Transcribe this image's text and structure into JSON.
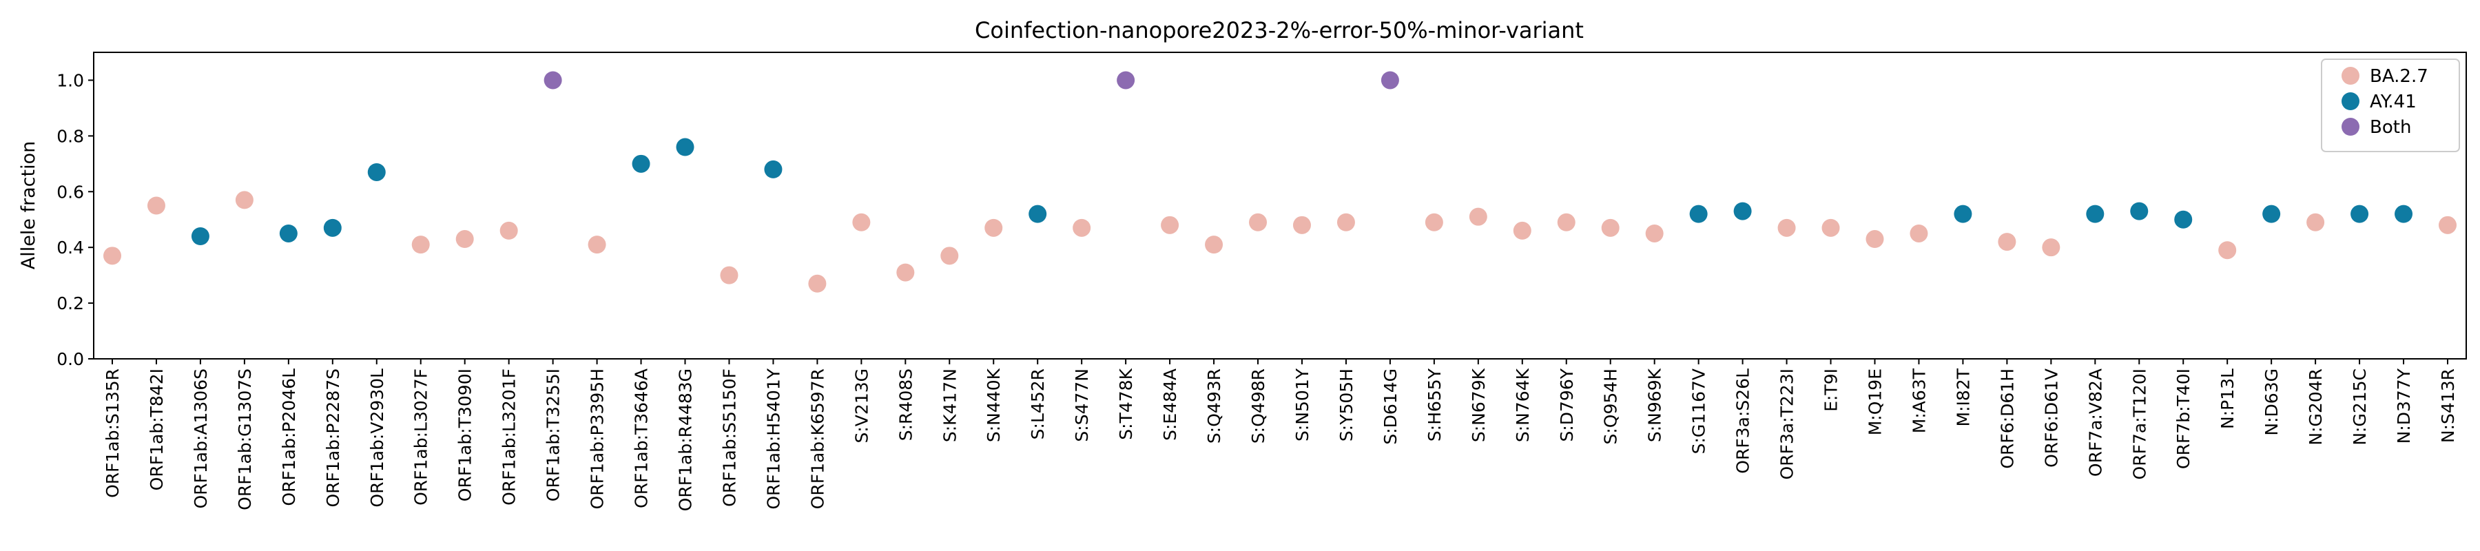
{
  "chart_data": {
    "type": "scatter",
    "title": "Coinfection-nanopore2023-2%-error-50%-minor-variant",
    "ylabel": "Allele fraction",
    "xlabel": "",
    "ylim": [
      0,
      1.1
    ],
    "yticks": [
      "0.0",
      "0.2",
      "0.4",
      "0.6",
      "0.8",
      "1.0"
    ],
    "grid": false,
    "legend_position": "top-right",
    "colors": {
      "BA.2.7": "#ecb5ac",
      "AY.41": "#0f7ba2",
      "Both": "#8c6bb1"
    },
    "series": [
      {
        "name": "BA.2.7"
      },
      {
        "name": "AY.41"
      },
      {
        "name": "Both"
      }
    ],
    "categories": [
      "ORF1ab:S135R",
      "ORF1ab:T842I",
      "ORF1ab:A1306S",
      "ORF1ab:G1307S",
      "ORF1ab:P2046L",
      "ORF1ab:P2287S",
      "ORF1ab:V2930L",
      "ORF1ab:L3027F",
      "ORF1ab:T3090I",
      "ORF1ab:L3201F",
      "ORF1ab:T3255I",
      "ORF1ab:P3395H",
      "ORF1ab:T3646A",
      "ORF1ab:R4483G",
      "ORF1ab:S5150F",
      "ORF1ab:H5401Y",
      "ORF1ab:K6597R",
      "S:V213G",
      "S:R408S",
      "S:K417N",
      "S:N440K",
      "S:L452R",
      "S:S477N",
      "S:T478K",
      "S:E484A",
      "S:Q493R",
      "S:Q498R",
      "S:N501Y",
      "S:Y505H",
      "S:D614G",
      "S:H655Y",
      "S:N679K",
      "S:N764K",
      "S:D796Y",
      "S:Q954H",
      "S:N969K",
      "S:G1167V",
      "ORF3a:S26L",
      "ORF3a:T223I",
      "E:T9I",
      "M:Q19E",
      "M:A63T",
      "M:I82T",
      "ORF6:D61H",
      "ORF6:D61V",
      "ORF7a:V82A",
      "ORF7a:T120I",
      "ORF7b:T40I",
      "N:P13L",
      "N:D63G",
      "N:G204R",
      "N:G215C",
      "N:D377Y",
      "N:S413R"
    ],
    "values": [
      0.37,
      0.55,
      0.44,
      0.57,
      0.45,
      0.47,
      0.67,
      0.41,
      0.43,
      0.46,
      1.0,
      0.41,
      0.7,
      0.76,
      0.3,
      0.68,
      0.27,
      0.49,
      0.31,
      0.37,
      0.47,
      0.52,
      0.47,
      1.0,
      0.48,
      0.41,
      0.49,
      0.48,
      0.49,
      1.0,
      0.49,
      0.51,
      0.46,
      0.49,
      0.47,
      0.45,
      0.52,
      0.53,
      0.47,
      0.47,
      0.43,
      0.45,
      0.52,
      0.42,
      0.4,
      0.52,
      0.53,
      0.5,
      0.39,
      0.52,
      0.49,
      0.52,
      0.52,
      0.48
    ],
    "groups": [
      "BA.2.7",
      "BA.2.7",
      "AY.41",
      "BA.2.7",
      "AY.41",
      "AY.41",
      "AY.41",
      "BA.2.7",
      "BA.2.7",
      "BA.2.7",
      "Both",
      "BA.2.7",
      "AY.41",
      "AY.41",
      "BA.2.7",
      "AY.41",
      "BA.2.7",
      "BA.2.7",
      "BA.2.7",
      "BA.2.7",
      "BA.2.7",
      "AY.41",
      "BA.2.7",
      "Both",
      "BA.2.7",
      "BA.2.7",
      "BA.2.7",
      "BA.2.7",
      "BA.2.7",
      "Both",
      "BA.2.7",
      "BA.2.7",
      "BA.2.7",
      "BA.2.7",
      "BA.2.7",
      "BA.2.7",
      "AY.41",
      "AY.41",
      "BA.2.7",
      "BA.2.7",
      "BA.2.7",
      "BA.2.7",
      "AY.41",
      "BA.2.7",
      "BA.2.7",
      "AY.41",
      "AY.41",
      "AY.41",
      "BA.2.7",
      "AY.41",
      "BA.2.7",
      "AY.41",
      "AY.41",
      "BA.2.7"
    ]
  }
}
